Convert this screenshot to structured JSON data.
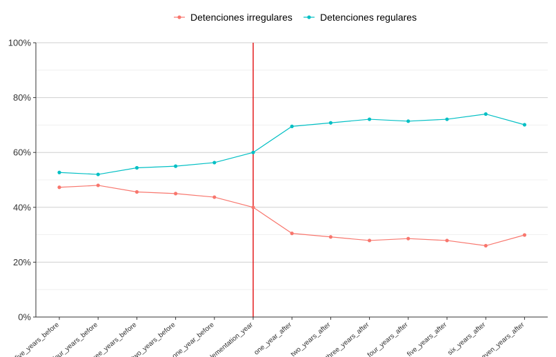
{
  "chart_data": {
    "type": "line",
    "title": "",
    "xlabel": "",
    "ylabel": "",
    "categories": [
      "five_years_before",
      "four_years_before",
      "three_years_before",
      "two_years_before",
      "one_year_before",
      "implementation_year",
      "one_year_after",
      "two_years_after",
      "three_years_after",
      "four_years_after",
      "five_years_after",
      "six_years_after",
      "seven_years_after"
    ],
    "series": [
      {
        "name": "Detenciones irregulares",
        "color": "#f8766d",
        "values": [
          47.3,
          48.0,
          45.6,
          45.0,
          43.7,
          40.0,
          30.5,
          29.2,
          27.9,
          28.6,
          27.9,
          26.0,
          29.9
        ]
      },
      {
        "name": "Detenciones regulares",
        "color": "#00bfc4",
        "values": [
          52.7,
          52.0,
          54.4,
          55.0,
          56.3,
          60.0,
          69.5,
          70.8,
          72.1,
          71.4,
          72.1,
          74.0,
          70.1
        ]
      }
    ],
    "ylim": [
      0,
      100
    ],
    "yticks": [
      0,
      20,
      40,
      60,
      80,
      100
    ],
    "ytick_labels": [
      "0%",
      "20%",
      "40%",
      "60%",
      "80%",
      "100%"
    ],
    "vline": {
      "category": "implementation_year",
      "color": "#e41a1c"
    },
    "legend_position": "top",
    "grid": true
  }
}
